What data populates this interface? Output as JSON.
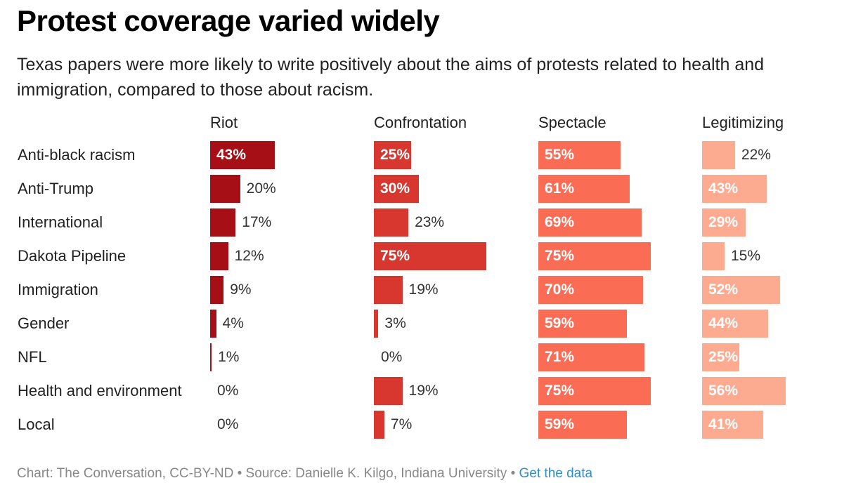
{
  "title": "Protest coverage varied widely",
  "subtitle": "Texas papers were more likely to write positively about the aims of protests related to health and immigration, compared to those about racism.",
  "footer": {
    "credit": "Chart: The Conversation, CC-BY-ND • Source: Danielle K. Kilgo, Indiana University • ",
    "link": "Get the data"
  },
  "chart_data": {
    "type": "bar",
    "orientation": "horizontal",
    "layout": "small-multiples",
    "categories": [
      "Anti-black racism",
      "Anti-Trump",
      "International",
      "Dakota Pipeline",
      "Immigration",
      "Gender",
      "NFL",
      "Health and environment",
      "Local"
    ],
    "value_suffix": "%",
    "xlim": [
      0,
      75
    ],
    "series": [
      {
        "name": "Riot",
        "color": "#a50f15",
        "values": [
          43,
          20,
          17,
          12,
          9,
          4,
          1,
          0,
          0
        ]
      },
      {
        "name": "Confrontation",
        "color": "#d7372e",
        "values": [
          25,
          30,
          23,
          75,
          19,
          3,
          0,
          19,
          7
        ]
      },
      {
        "name": "Spectacle",
        "color": "#fb6c55",
        "values": [
          55,
          61,
          69,
          75,
          70,
          59,
          71,
          75,
          59
        ]
      },
      {
        "name": "Legitimizing",
        "color": "#fcab91",
        "values": [
          22,
          43,
          29,
          15,
          52,
          44,
          25,
          56,
          41
        ]
      }
    ]
  }
}
